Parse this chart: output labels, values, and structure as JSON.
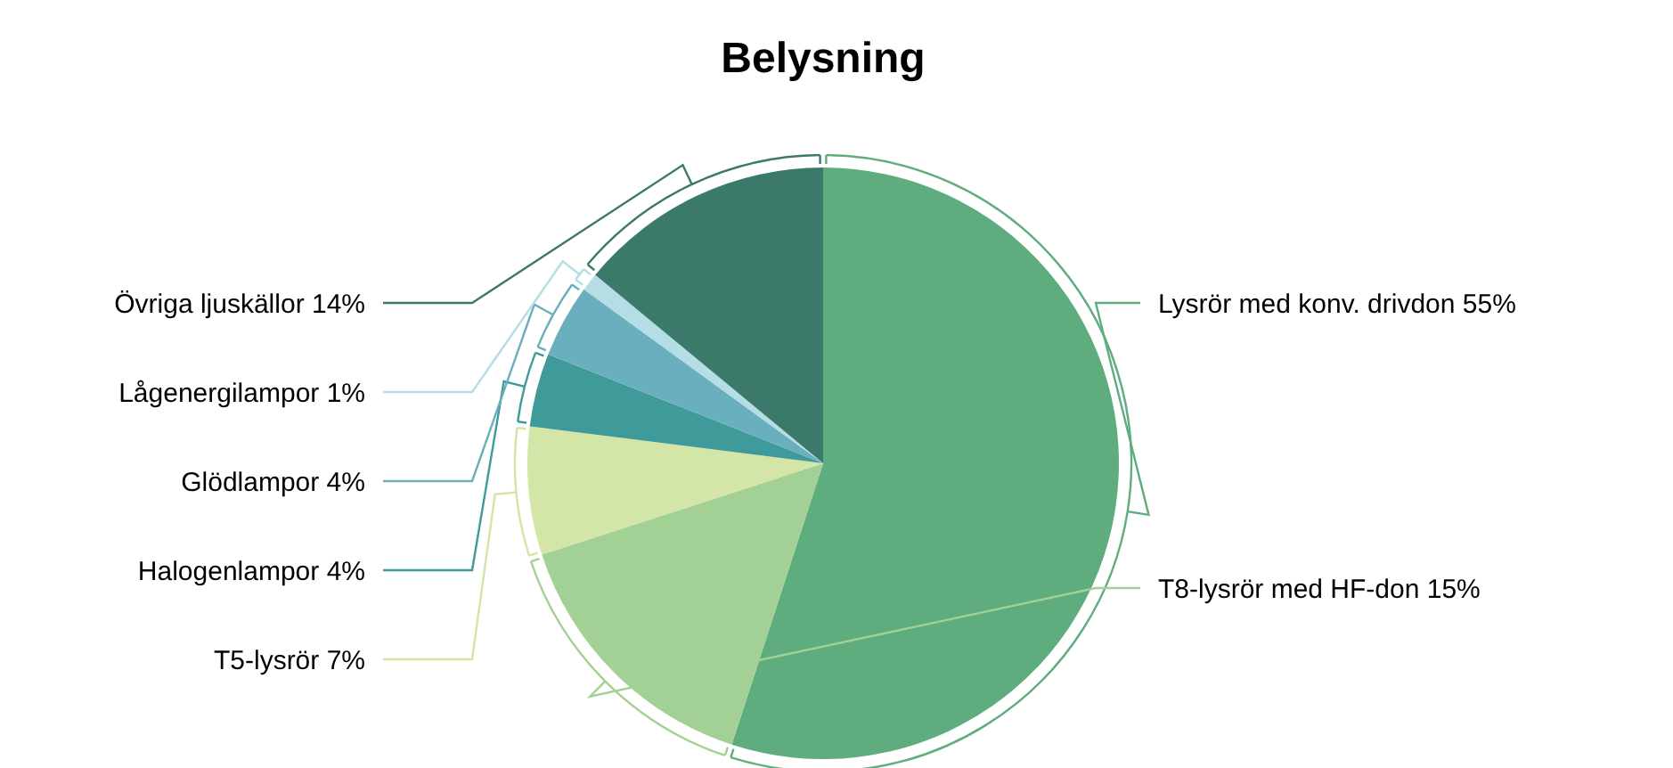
{
  "chart_data": {
    "type": "pie",
    "title": "Belysning",
    "categories": [
      "Lysrör med konv. drivdon",
      "T8-lysrör med HF-don",
      "T5-lysrör",
      "Halogenlampor",
      "Glödlampor",
      "Lågenergilampor",
      "Övriga ljuskällor"
    ],
    "values": [
      55,
      15,
      7,
      4,
      4,
      1,
      14
    ],
    "value_labels": [
      "55%",
      "15%",
      "7%",
      "4%",
      "4%",
      "1%",
      "14%"
    ],
    "colors": [
      "#5fad7e",
      "#a3d195",
      "#d4e5a8",
      "#3f9a9a",
      "#6aafbd",
      "#b5dde6",
      "#3b7a6a"
    ]
  }
}
